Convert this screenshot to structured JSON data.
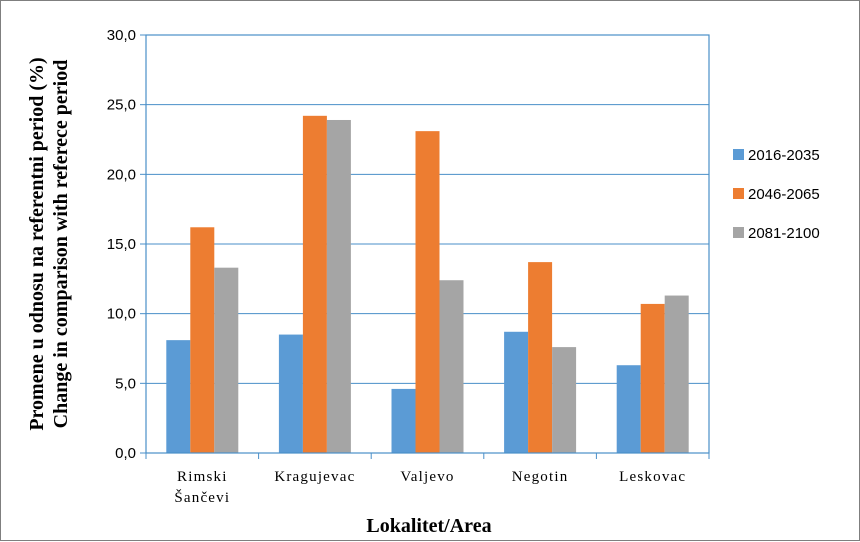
{
  "chart_data": {
    "type": "bar",
    "categories": [
      "Rimski Šančevi",
      "Kragujevac",
      "Valjevo",
      "Negotin",
      "Leskovac"
    ],
    "category_lines": [
      [
        "Rimski",
        "Šančevi"
      ],
      [
        "Kragujevac"
      ],
      [
        "Valjevo"
      ],
      [
        "Negotin"
      ],
      [
        "Leskovac"
      ]
    ],
    "series": [
      {
        "name": "2016-2035",
        "color": "#5b9bd5",
        "values": [
          8.1,
          8.5,
          4.6,
          8.7,
          6.3
        ]
      },
      {
        "name": "2046-2065",
        "color": "#ed7d31",
        "values": [
          16.2,
          24.2,
          23.1,
          13.7,
          10.7
        ]
      },
      {
        "name": "2081-2100",
        "color": "#a5a5a5",
        "values": [
          13.3,
          23.9,
          12.4,
          7.6,
          11.3
        ]
      }
    ],
    "ylim": [
      0,
      30
    ],
    "yticks": [
      0,
      5,
      10,
      15,
      20,
      25,
      30
    ],
    "ytick_labels": [
      "0,0",
      "5,0",
      "10,0",
      "15,0",
      "20,0",
      "25,0",
      "30,0"
    ],
    "ylabel_lines": [
      "Promene u odnosu na referentni period (%)",
      "Change in comparison with referece period"
    ],
    "xlabel": "Lokalitet/Area",
    "grid": true,
    "legend_position": "right"
  }
}
